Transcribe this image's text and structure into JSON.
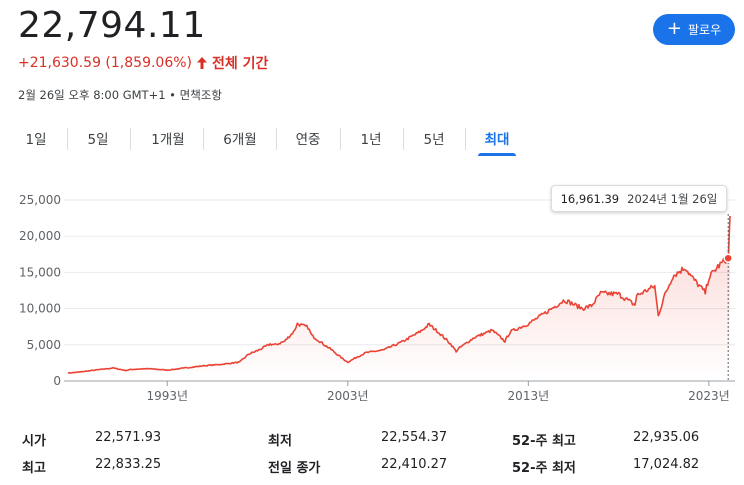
{
  "quote": {
    "price": "22,794.11",
    "change": "+21,630.59 (1,859.06%)",
    "period_label": "전체 기간",
    "meta": "2월 26일 오후 8:00 GMT+1 • 면책조항"
  },
  "follow_button": {
    "label": "팔로우",
    "icon": "plus-icon",
    "color": "#1a73e8"
  },
  "tabs": [
    {
      "label": "1일"
    },
    {
      "label": "5일"
    },
    {
      "label": "1개월"
    },
    {
      "label": "6개월"
    },
    {
      "label": "연중"
    },
    {
      "label": "1년"
    },
    {
      "label": "5년"
    },
    {
      "label": "최대",
      "active": true
    }
  ],
  "tooltip": {
    "value": "16,961.39",
    "date": "2024년 1월 26일"
  },
  "colors": {
    "up": "#d93025",
    "line": "#ea4335",
    "accent": "#1a73e8",
    "grid": "#e8eaed"
  },
  "chart_data": {
    "type": "area",
    "x_unit": "year",
    "y_ticks": [
      "25,000",
      "20,000",
      "15,000",
      "10,000",
      "5,000",
      "0"
    ],
    "x_ticks": [
      "1993년",
      "2003년",
      "2013년",
      "2023년"
    ],
    "ylim": [
      0,
      25000
    ],
    "xlim": [
      1987.5,
      2024.17
    ],
    "grid": true,
    "x": [
      1987.5,
      1988,
      1989,
      1990,
      1990.7,
      1991,
      1992,
      1993,
      1994,
      1994.5,
      1995,
      1996,
      1997,
      1997.5,
      1998,
      1998.7,
      1999,
      1999.5,
      2000,
      2000.2,
      2000.8,
      2001,
      2001.7,
      2002,
      2002.7,
      2003,
      2003.5,
      2004,
      2005,
      2006,
      2007,
      2007.5,
      2008,
      2008.7,
      2009,
      2009.2,
      2010,
      2011,
      2011.7,
      2012,
      2013,
      2014,
      2015,
      2016,
      2016.5,
      2017,
      2018,
      2018.9,
      2019,
      2020,
      2020.2,
      2020.5,
      2021,
      2021.7,
      2022,
      2022.8,
      2023,
      2023.5,
      2024,
      2024.08,
      2024.17
    ],
    "values": [
      1100,
      1200,
      1500,
      1800,
      1450,
      1600,
      1700,
      1500,
      1800,
      1950,
      2100,
      2300,
      2600,
      3700,
      4200,
      5100,
      5000,
      5500,
      6800,
      7900,
      7400,
      6300,
      5000,
      4500,
      3100,
      2600,
      3300,
      3900,
      4300,
      5400,
      6800,
      7800,
      6800,
      5100,
      4100,
      4600,
      6000,
      7000,
      5500,
      6800,
      7900,
      9500,
      11200,
      10000,
      10400,
      12100,
      12000,
      10500,
      11800,
      13100,
      9000,
      11500,
      14500,
      15700,
      14500,
      12200,
      14300,
      15800,
      16900,
      17400,
      22794
    ]
  },
  "stats": [
    {
      "label": "시가",
      "value": "22,571.93"
    },
    {
      "label": "최고",
      "value": "22,833.25"
    },
    {
      "label": "최저",
      "value": "22,554.37"
    },
    {
      "label": "전일 종가",
      "value": "22,410.27"
    },
    {
      "label": "52-주 최고",
      "value": "22,935.06"
    },
    {
      "label": "52-주 최저",
      "value": "17,024.82"
    }
  ]
}
